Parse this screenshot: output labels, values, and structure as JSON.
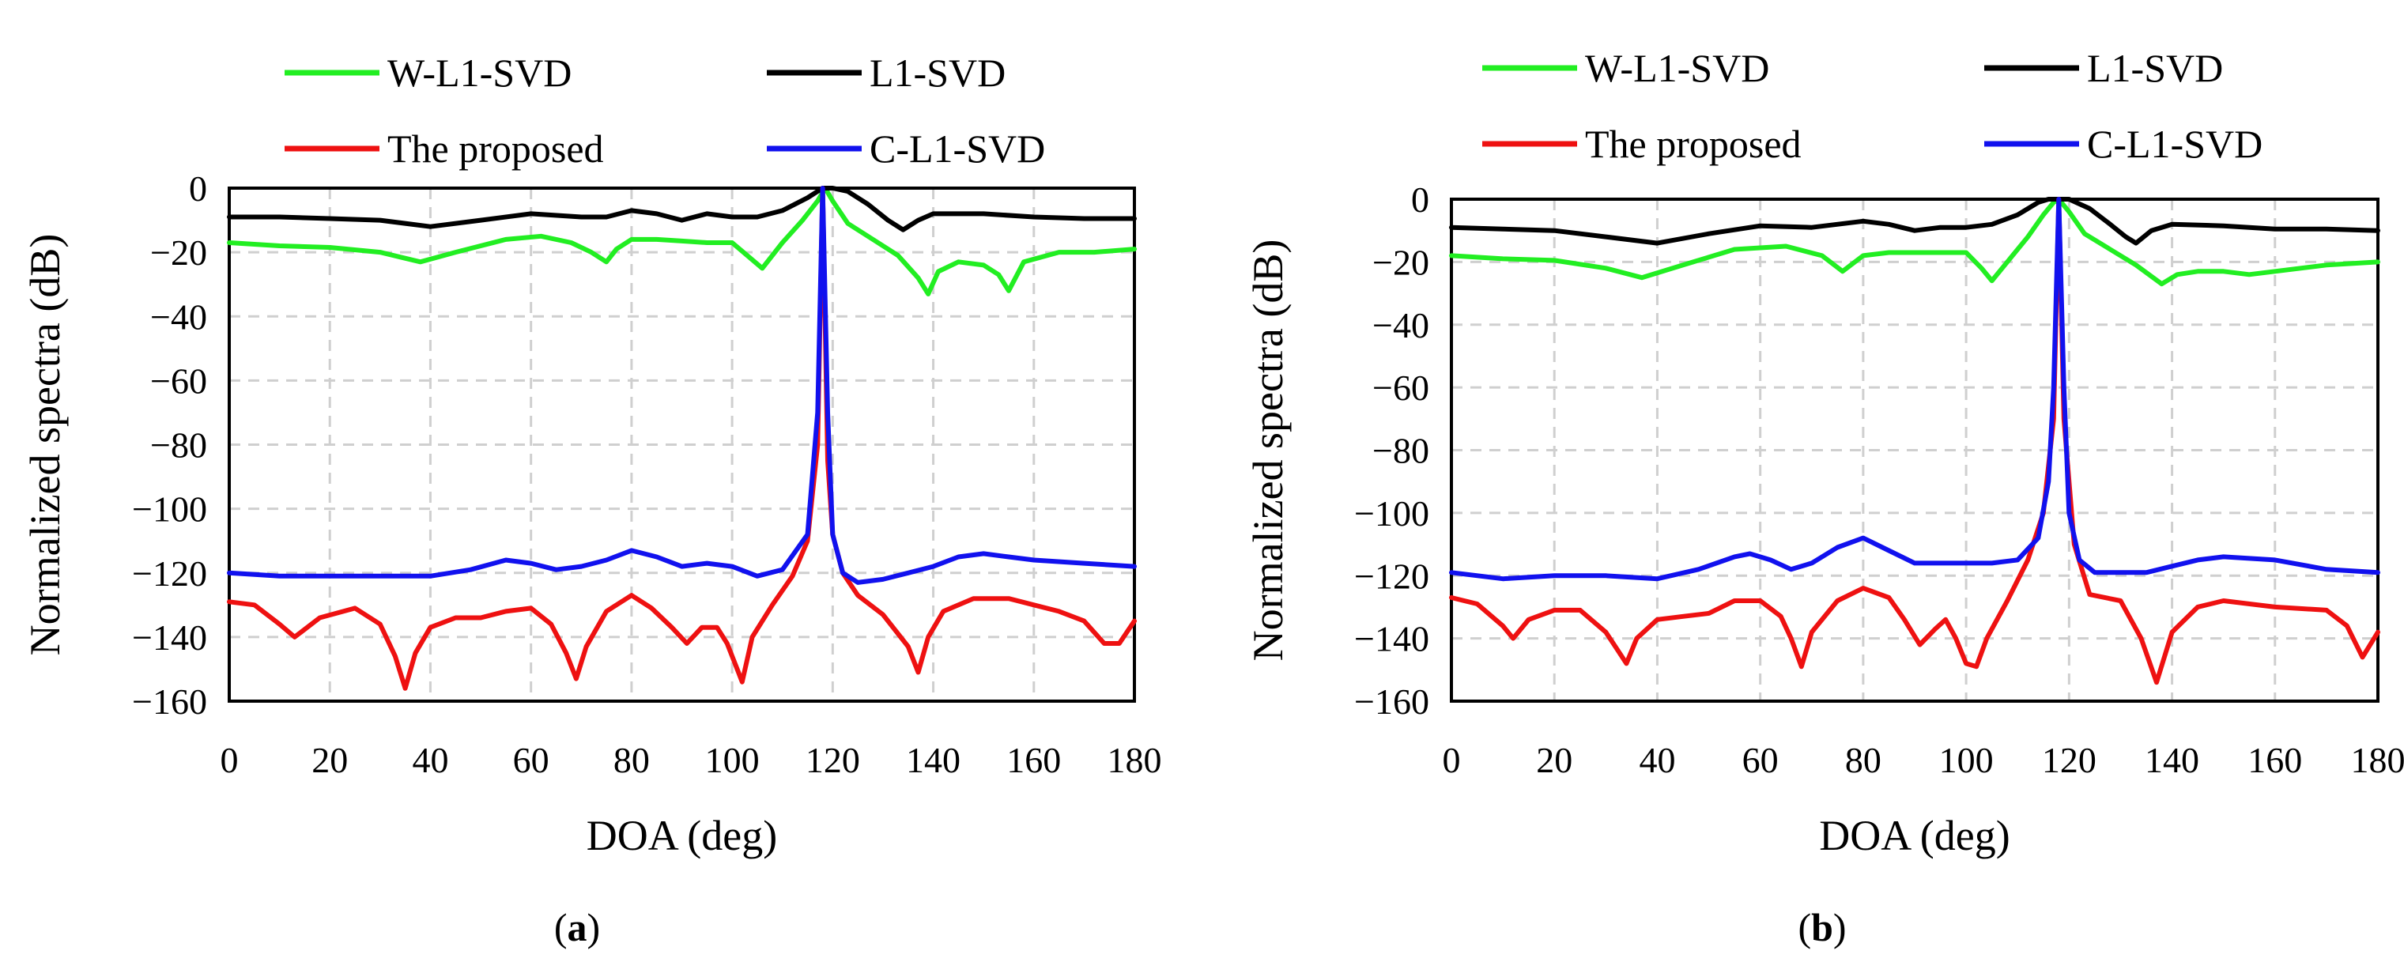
{
  "chart_data": [
    {
      "type": "line",
      "caption_open": "(",
      "caption_letter": "a",
      "caption_close": ")",
      "xlabel": "DOA (deg)",
      "ylabel": "Normalized spectra (dB)",
      "xlim": [
        0,
        180
      ],
      "ylim": [
        -160,
        0
      ],
      "xticks": [
        "0",
        "20",
        "40",
        "60",
        "80",
        "100",
        "120",
        "140",
        "160",
        "180"
      ],
      "yticks": [
        "0",
        "−20",
        "−40",
        "−60",
        "−80",
        "−100",
        "−120",
        "−140",
        "−160"
      ],
      "grid": true,
      "legend_position": "top",
      "series": [
        {
          "name": "W-L1-SVD",
          "color": "#22ee22",
          "x": [
            0,
            10,
            20,
            30,
            38,
            45,
            55,
            62,
            68,
            72,
            75,
            77,
            80,
            85,
            90,
            95,
            100,
            103,
            106,
            110,
            114,
            117,
            118.5,
            120,
            123,
            128,
            133,
            137,
            139,
            141,
            145,
            150,
            153,
            155,
            158,
            165,
            172,
            180
          ],
          "y": [
            -17,
            -18,
            -18.5,
            -20,
            -23,
            -20,
            -16,
            -15,
            -17,
            -20,
            -23,
            -19,
            -16,
            -16,
            -16.5,
            -17,
            -17,
            -21,
            -25,
            -17,
            -10,
            -4,
            0,
            -4,
            -11,
            -16,
            -21,
            -28,
            -33,
            -26,
            -23,
            -24,
            -27,
            -32,
            -23,
            -20,
            -20,
            -19
          ]
        },
        {
          "name": "L1-SVD",
          "color": "#000000",
          "x": [
            0,
            10,
            20,
            30,
            40,
            50,
            60,
            70,
            75,
            80,
            85,
            90,
            95,
            100,
            105,
            110,
            115,
            118,
            120,
            123,
            127,
            131,
            134,
            137,
            140,
            150,
            160,
            170,
            180
          ],
          "y": [
            -9,
            -9,
            -9.5,
            -10,
            -12,
            -10,
            -8,
            -9,
            -9,
            -7,
            -8,
            -10,
            -8,
            -9,
            -9,
            -7,
            -3,
            0,
            0,
            -1,
            -5,
            -10,
            -13,
            -10,
            -8,
            -8,
            -9,
            -9.5,
            -9.5
          ]
        },
        {
          "name": "The proposed",
          "color": "#ee1111",
          "x": [
            0,
            5,
            10,
            13,
            18,
            25,
            30,
            33,
            35,
            37,
            40,
            45,
            50,
            55,
            60,
            64,
            67,
            69,
            71,
            75,
            80,
            84,
            88,
            91,
            94,
            97,
            99,
            101,
            102,
            104,
            108,
            112,
            115,
            117,
            118,
            119,
            120,
            122,
            125,
            130,
            135,
            137,
            139,
            142,
            148,
            155,
            160,
            165,
            170,
            174,
            177,
            180
          ],
          "y": [
            -129,
            -130,
            -136,
            -140,
            -134,
            -131,
            -136,
            -146,
            -156,
            -145,
            -137,
            -134,
            -134,
            -132,
            -131,
            -136,
            -145,
            -153,
            -143,
            -132,
            -127,
            -131,
            -137,
            -142,
            -137,
            -137,
            -142,
            -150,
            -154,
            -140,
            -130,
            -121,
            -110,
            -80,
            0,
            -85,
            -108,
            -120,
            -127,
            -133,
            -143,
            -151,
            -140,
            -132,
            -128,
            -128,
            -130,
            -132,
            -135,
            -142,
            -142,
            -135
          ]
        },
        {
          "name": "C-L1-SVD",
          "color": "#1111ee",
          "x": [
            0,
            10,
            20,
            30,
            40,
            48,
            55,
            60,
            65,
            70,
            75,
            80,
            85,
            90,
            95,
            100,
            105,
            110,
            115,
            117,
            118,
            119,
            120,
            122,
            125,
            130,
            135,
            140,
            145,
            150,
            155,
            160,
            170,
            180
          ],
          "y": [
            -120,
            -121,
            -121,
            -121,
            -121,
            -119,
            -116,
            -117,
            -119,
            -118,
            -116,
            -113,
            -115,
            -118,
            -117,
            -118,
            -121,
            -119,
            -108,
            -70,
            0,
            -70,
            -108,
            -120,
            -123,
            -122,
            -120,
            -118,
            -115,
            -114,
            -115,
            -116,
            -117,
            -118
          ]
        }
      ]
    },
    {
      "type": "line",
      "caption_open": "(",
      "caption_letter": "b",
      "caption_close": ")",
      "xlabel": "DOA (deg)",
      "ylabel": "Normalized spectra (dB)",
      "xlim": [
        0,
        180
      ],
      "ylim": [
        -160,
        0
      ],
      "xticks": [
        "0",
        "20",
        "40",
        "60",
        "80",
        "100",
        "120",
        "140",
        "160",
        "180"
      ],
      "yticks": [
        "0",
        "−20",
        "−40",
        "−60",
        "−80",
        "−100",
        "−120",
        "−140",
        "−160"
      ],
      "grid": true,
      "legend_position": "top",
      "series": [
        {
          "name": "W-L1-SVD",
          "color": "#22ee22",
          "x": [
            0,
            10,
            20,
            30,
            37,
            45,
            55,
            65,
            72,
            76,
            80,
            85,
            90,
            95,
            100,
            103,
            105,
            108,
            112,
            115,
            117,
            118,
            120,
            123,
            128,
            133,
            138,
            141,
            145,
            150,
            155,
            160,
            170,
            180
          ],
          "y": [
            -18,
            -19,
            -19.5,
            -22,
            -25,
            -21,
            -16,
            -15,
            -18,
            -23,
            -18,
            -17,
            -17,
            -17,
            -17,
            -22,
            -26,
            -20,
            -12,
            -5,
            -1,
            0,
            -4,
            -11,
            -16,
            -21,
            -27,
            -24,
            -23,
            -23,
            -24,
            -23,
            -21,
            -20
          ]
        },
        {
          "name": "L1-SVD",
          "color": "#000000",
          "x": [
            0,
            10,
            20,
            30,
            40,
            50,
            60,
            70,
            80,
            85,
            90,
            95,
            100,
            105,
            110,
            114,
            116,
            118,
            120,
            124,
            128,
            131,
            133,
            136,
            140,
            150,
            160,
            170,
            180
          ],
          "y": [
            -9,
            -9.5,
            -10,
            -12,
            -14,
            -11,
            -8.5,
            -9,
            -7,
            -8,
            -10,
            -9,
            -9,
            -8,
            -5,
            -1,
            0,
            0,
            0,
            -3,
            -8,
            -12,
            -14,
            -10,
            -8,
            -8.5,
            -9.5,
            -9.5,
            -10
          ]
        },
        {
          "name": "The proposed",
          "color": "#ee1111",
          "x": [
            0,
            5,
            10,
            12,
            15,
            20,
            25,
            30,
            32,
            34,
            36,
            40,
            45,
            50,
            55,
            60,
            64,
            66,
            68,
            70,
            75,
            80,
            85,
            88,
            91,
            94,
            96,
            98,
            100,
            102,
            104,
            108,
            112,
            115,
            117,
            118,
            119,
            121,
            124,
            130,
            134,
            137,
            140,
            145,
            150,
            160,
            170,
            174,
            177,
            180
          ],
          "y": [
            -127,
            -129,
            -136,
            -140,
            -134,
            -131,
            -131,
            -138,
            -143,
            -148,
            -140,
            -134,
            -133,
            -132,
            -128,
            -128,
            -133,
            -140,
            -149,
            -138,
            -128,
            -124,
            -127,
            -134,
            -142,
            -137,
            -134,
            -140,
            -148,
            -149,
            -140,
            -128,
            -115,
            -100,
            -70,
            0,
            -70,
            -110,
            -126,
            -128,
            -140,
            -154,
            -138,
            -130,
            -128,
            -130,
            -131,
            -136,
            -146,
            -138
          ]
        },
        {
          "name": "C-L1-SVD",
          "color": "#1111ee",
          "x": [
            0,
            10,
            20,
            30,
            40,
            48,
            55,
            58,
            62,
            66,
            70,
            75,
            80,
            85,
            90,
            95,
            100,
            105,
            110,
            114,
            116,
            117,
            118,
            119,
            120,
            122,
            125,
            130,
            135,
            140,
            145,
            150,
            160,
            170,
            180
          ],
          "y": [
            -119,
            -121,
            -120,
            -120,
            -121,
            -118,
            -114,
            -113,
            -115,
            -118,
            -116,
            -111,
            -108,
            -112,
            -116,
            -116,
            -116,
            -116,
            -115,
            -108,
            -90,
            -60,
            0,
            -60,
            -100,
            -115,
            -119,
            -119,
            -119,
            -117,
            -115,
            -114,
            -115,
            -118,
            -119
          ]
        }
      ]
    }
  ]
}
